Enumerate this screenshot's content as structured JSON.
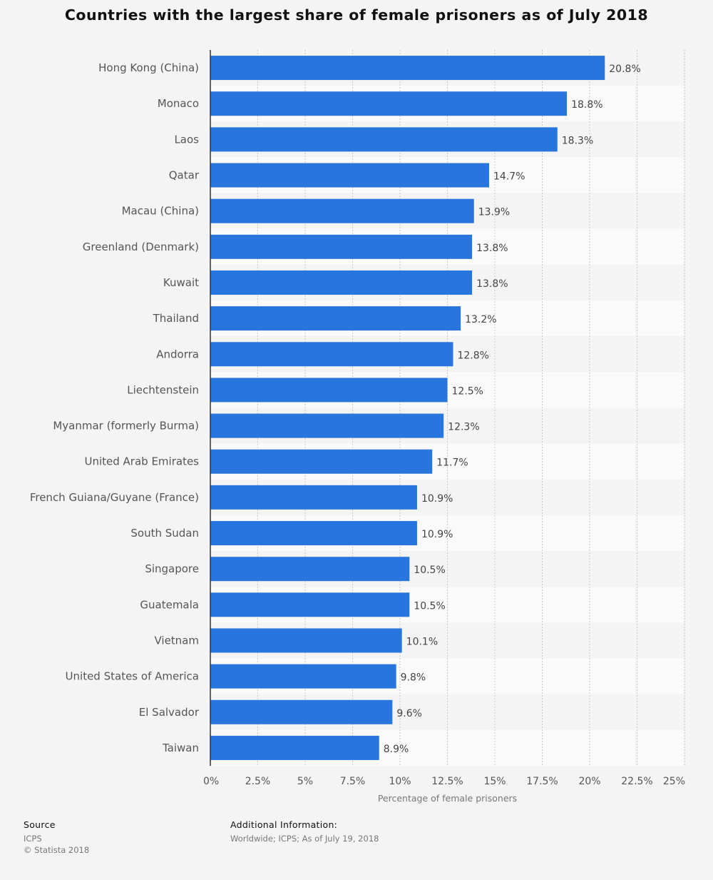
{
  "chart_data": {
    "type": "bar",
    "orientation": "horizontal",
    "title": "Countries with the largest share of female prisoners as of July 2018",
    "xlabel": "Percentage of female prisoners",
    "ylabel": "",
    "xlim": [
      0,
      25
    ],
    "x_ticks": [
      "0%",
      "2.5%",
      "5%",
      "7.5%",
      "10%",
      "12.5%",
      "15%",
      "17.5%",
      "20%",
      "22.5%",
      "25%"
    ],
    "grid": true,
    "bar_color": "#2876dd",
    "categories": [
      "Hong Kong (China)",
      "Monaco",
      "Laos",
      "Qatar",
      "Macau (China)",
      "Greenland (Denmark)",
      "Kuwait",
      "Thailand",
      "Andorra",
      "Liechtenstein",
      "Myanmar (formerly Burma)",
      "United Arab Emirates",
      "French Guiana/Guyane (France)",
      "South Sudan",
      "Singapore",
      "Guatemala",
      "Vietnam",
      "United States of America",
      "El Salvador",
      "Taiwan"
    ],
    "values": [
      20.8,
      18.8,
      18.3,
      14.7,
      13.9,
      13.8,
      13.8,
      13.2,
      12.8,
      12.5,
      12.3,
      11.7,
      10.9,
      10.9,
      10.5,
      10.5,
      10.1,
      9.8,
      9.6,
      8.9
    ],
    "value_labels": [
      "20.8%",
      "18.8%",
      "18.3%",
      "14.7%",
      "13.9%",
      "13.8%",
      "13.8%",
      "13.2%",
      "12.8%",
      "12.5%",
      "12.3%",
      "11.7%",
      "10.9%",
      "10.9%",
      "10.5%",
      "10.5%",
      "10.1%",
      "9.8%",
      "9.6%",
      "8.9%"
    ]
  },
  "footer": {
    "source_heading": "Source",
    "source_name": "ICPS",
    "copyright": "© Statista 2018",
    "additional_heading": "Additional Information:",
    "additional_text": "Worldwide; ICPS; As of July 19, 2018"
  }
}
